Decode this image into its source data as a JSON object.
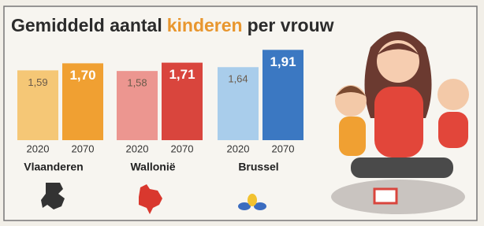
{
  "chart_data": {
    "type": "bar",
    "title_parts": [
      "Gemiddeld aantal",
      "kinderen",
      "per vrouw"
    ],
    "title_colors": [
      "#2b2b2b",
      "#e8962e",
      "#2b2b2b"
    ],
    "categories": [
      "Vlaanderen",
      "Wallonië",
      "Brussel"
    ],
    "series": [
      {
        "name": "2020",
        "values": [
          1.59,
          1.58,
          1.64
        ],
        "value_labels": [
          "1,59",
          "1,58",
          "1,64"
        ],
        "colors": [
          "#f5c776",
          "#ec9690",
          "#a9cdeb"
        ]
      },
      {
        "name": "2070",
        "values": [
          1.7,
          1.71,
          1.91
        ],
        "value_labels": [
          "1,70",
          "1,71",
          "1,91"
        ],
        "colors": [
          "#f0a032",
          "#d9453d",
          "#3b78c2"
        ]
      }
    ],
    "ylim": [
      0.5,
      2
    ]
  }
}
